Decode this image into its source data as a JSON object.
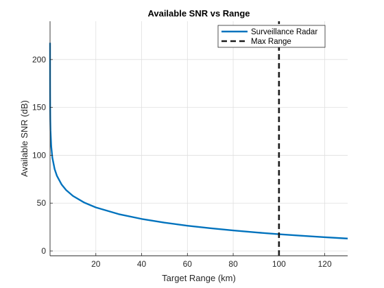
{
  "chart_data": {
    "type": "line",
    "title": "Available SNR vs Range",
    "xlabel": "Target Range (km)",
    "ylabel": "Available SNR (dB)",
    "xlim": [
      0,
      130
    ],
    "ylim": [
      -5,
      240
    ],
    "xticks": [
      20,
      40,
      60,
      80,
      100,
      120
    ],
    "yticks": [
      0,
      50,
      100,
      150,
      200
    ],
    "grid": true,
    "legend_position": "top-right",
    "series": [
      {
        "name": "Surveillance Radar",
        "color": "#0072BD",
        "style": "solid",
        "x": [
          0.001,
          0.002,
          0.005,
          0.01,
          0.02,
          0.05,
          0.1,
          0.2,
          0.5,
          1,
          2,
          3,
          5,
          7,
          10,
          15,
          20,
          30,
          40,
          50,
          60,
          70,
          80,
          90,
          100,
          110,
          120,
          130
        ],
        "y": [
          217.5,
          205.5,
          189.5,
          177.5,
          165.5,
          149.6,
          137.5,
          125.5,
          109.6,
          97.5,
          85.5,
          78.5,
          69.6,
          63.7,
          57.5,
          50.5,
          45.5,
          38.5,
          33.5,
          29.6,
          26.4,
          23.8,
          21.5,
          19.4,
          17.5,
          15.9,
          14.4,
          13.0
        ]
      },
      {
        "name": "Max Range",
        "color": "#1a1a1a",
        "style": "dashed",
        "x": [
          100,
          100
        ],
        "y": [
          -5,
          240
        ]
      }
    ]
  }
}
